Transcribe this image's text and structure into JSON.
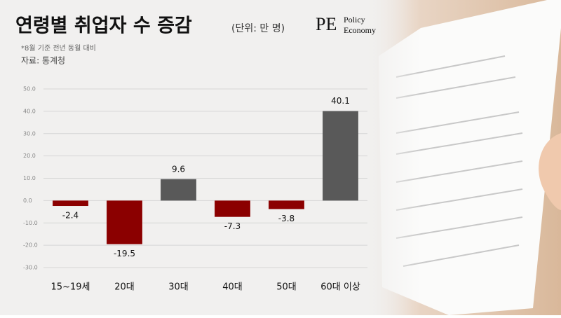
{
  "chart_data": {
    "type": "bar",
    "title": "연령별 취업자 수 증감",
    "subtitle": "(단위: 만 명)",
    "note": "*8월 기준 전년 동월 대비",
    "source": "자료: 통계청",
    "logo": {
      "mark": "PE",
      "line1": "Policy",
      "line2": "Economy"
    },
    "categories": [
      "15~19세",
      "20대",
      "30대",
      "40대",
      "50대",
      "60대 이상"
    ],
    "values": [
      -2.4,
      -19.5,
      9.6,
      -7.3,
      -3.8,
      40.1
    ],
    "colors": [
      "#8b0000",
      "#8b0000",
      "#595959",
      "#8b0000",
      "#8b0000",
      "#595959"
    ],
    "ylim": [
      -30,
      50
    ],
    "yticks": [
      {
        "value": 50,
        "label": "50.0"
      },
      {
        "value": 40,
        "label": "40.0"
      },
      {
        "value": 30,
        "label": "30.0"
      },
      {
        "value": 20,
        "label": "20.0"
      },
      {
        "value": 10,
        "label": "10.0"
      },
      {
        "value": 0,
        "label": "0.0"
      },
      {
        "value": -10,
        "label": "-10.0"
      },
      {
        "value": -20,
        "label": "-20.0"
      },
      {
        "value": -30,
        "label": "-30.0"
      }
    ],
    "grid": true
  }
}
